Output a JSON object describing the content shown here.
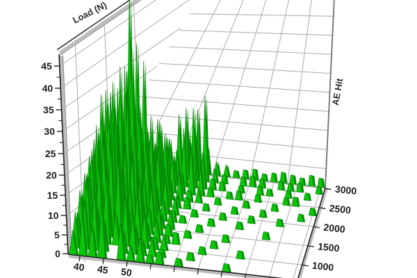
{
  "figure": {
    "background": "#ffffff",
    "description": "3D spike plot of acoustic emission hits versus load"
  },
  "chart_data": {
    "type": "3d-spike-surface",
    "left_axis": {
      "title": "Load (N)",
      "tick_values": [
        45,
        40,
        35,
        30,
        25,
        20,
        15,
        10,
        5,
        0
      ]
    },
    "right_axis": {
      "title": "AE Hit",
      "tick_values": [
        1000,
        1500,
        2000,
        2500,
        3000
      ]
    },
    "bottom_axis": {
      "title": "",
      "tick_values": [
        40,
        45,
        50
      ]
    },
    "grid": true,
    "colors": {
      "spike": "#0ac50a",
      "spike_shadow": "#078f07",
      "spike_edge": "#056e05",
      "grid": "#a9a9a9",
      "axis": "#222222",
      "frame": "#bdbdbd",
      "label": "#1a1a1a",
      "title": "#2b2b2b"
    },
    "spike_rows_back_to_front": [
      [
        8,
        14,
        10,
        18,
        12,
        9,
        13,
        9,
        16,
        12,
        18,
        8,
        4,
        3.5,
        2,
        2.5,
        3,
        2,
        2.5,
        3,
        2.5,
        2,
        3,
        2.5
      ],
      [
        10,
        22,
        15,
        50,
        20,
        12,
        16,
        11,
        8,
        20,
        14,
        24,
        4,
        2.5,
        0,
        2.5,
        3,
        2.5,
        0,
        2.5,
        2,
        2.5,
        0,
        2
      ],
      [
        12,
        18,
        25,
        30,
        38,
        16,
        11,
        14,
        8,
        16,
        22,
        10,
        3,
        2.5,
        0,
        2,
        0,
        2.5,
        2,
        0,
        2,
        0,
        2,
        0
      ],
      [
        9,
        26,
        19,
        33,
        24,
        35,
        14,
        9,
        11,
        6,
        14,
        8,
        2.5,
        0,
        2,
        2.5,
        0,
        2,
        0,
        0,
        2,
        2.5,
        0,
        0
      ],
      [
        14,
        20,
        30,
        24,
        40,
        18,
        22,
        12,
        6,
        8,
        3,
        4,
        0,
        2,
        0,
        0,
        2,
        0,
        0,
        2,
        0,
        0,
        0,
        2
      ],
      [
        11,
        28,
        17,
        36,
        21,
        26,
        13,
        16,
        9,
        4,
        3,
        0,
        2,
        0,
        0,
        2,
        0,
        0,
        2,
        0,
        0,
        0,
        2,
        0
      ],
      [
        13,
        19,
        27,
        22,
        31,
        15,
        18,
        8,
        10,
        5,
        0,
        2,
        0,
        0,
        2,
        0,
        0,
        2,
        0,
        0,
        2,
        0,
        0,
        0
      ],
      [
        10,
        23,
        16,
        28,
        19,
        24,
        11,
        13,
        6,
        3,
        2,
        0,
        0,
        2,
        0,
        0,
        2,
        0,
        0,
        0,
        0,
        0,
        0,
        0
      ],
      [
        12,
        17,
        22,
        26,
        14,
        19,
        9,
        11,
        4,
        5,
        0,
        0,
        2,
        0,
        0,
        0,
        0,
        0,
        0,
        2,
        0,
        0,
        0,
        0
      ],
      [
        8,
        20,
        13,
        23,
        17,
        12,
        14,
        7,
        8,
        3,
        0,
        2,
        0,
        0,
        0,
        2,
        0,
        0,
        0,
        0,
        0,
        0,
        0,
        0
      ],
      [
        11,
        15,
        19,
        12,
        21,
        9,
        12,
        5,
        6,
        2,
        3,
        0,
        0,
        0,
        2,
        0,
        0,
        0,
        0,
        0,
        0,
        0,
        0,
        0
      ],
      [
        7,
        16,
        10,
        18,
        8,
        13,
        6,
        9,
        3,
        4,
        0,
        0,
        0,
        2,
        0,
        0,
        0,
        2,
        0,
        0,
        0,
        0,
        0,
        0
      ],
      [
        9,
        12,
        15,
        8,
        0,
        6,
        10,
        4,
        5,
        2,
        0,
        0,
        2,
        0,
        0,
        0,
        0,
        0,
        0,
        0,
        0,
        0,
        0,
        0
      ],
      [
        6,
        10,
        8,
        13,
        0,
        9,
        4,
        6,
        2,
        3,
        0,
        2,
        0,
        0,
        0,
        0,
        2,
        0,
        0,
        0,
        0,
        0,
        0,
        0
      ]
    ]
  }
}
